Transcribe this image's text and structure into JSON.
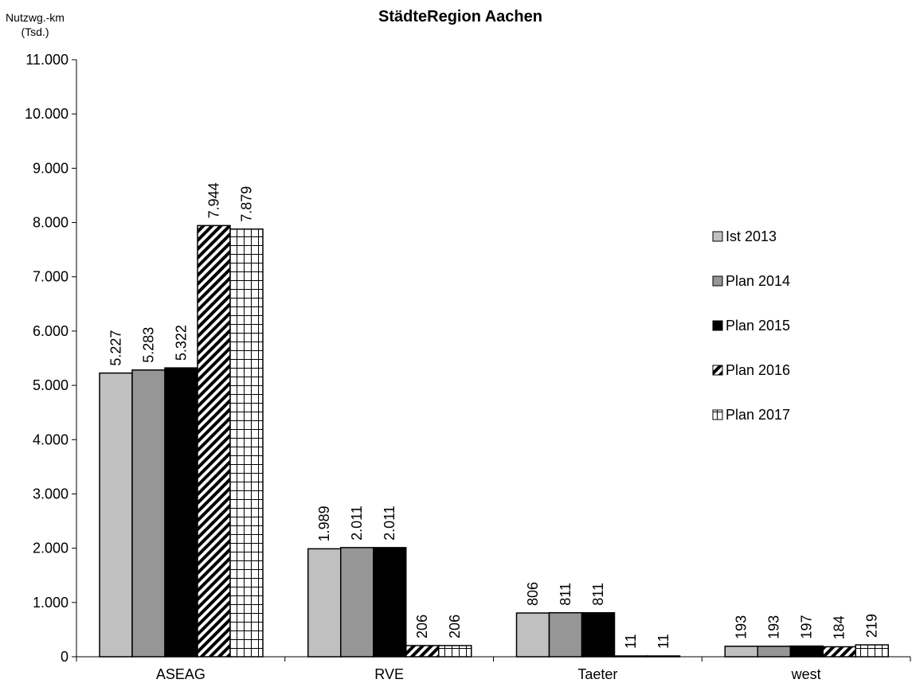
{
  "chart_data": {
    "type": "bar",
    "title": "StädteRegion Aachen",
    "ylabel_line1": "Nutzwg.-km",
    "ylabel_line2": "(Tsd.)",
    "categories": [
      "ASEAG",
      "RVE",
      "Taeter",
      "west"
    ],
    "ylim": [
      0,
      11000
    ],
    "ytick_step": 1000,
    "ytick_labels": [
      "0",
      "1.000",
      "2.000",
      "3.000",
      "4.000",
      "5.000",
      "6.000",
      "7.000",
      "8.000",
      "9.000",
      "10.000",
      "11.000"
    ],
    "grid": false,
    "legend_position": "right",
    "series": [
      {
        "name": "Ist 2013",
        "values": [
          5227,
          1989,
          806,
          193
        ],
        "labels": [
          "5.227",
          "1.989",
          "806",
          "193"
        ],
        "fill": "#c0c0c0",
        "pattern": "solid"
      },
      {
        "name": "Plan 2014",
        "values": [
          5283,
          2011,
          811,
          193
        ],
        "labels": [
          "5.283",
          "2.011",
          "811",
          "193"
        ],
        "fill": "#969696",
        "pattern": "solid"
      },
      {
        "name": "Plan 2015",
        "values": [
          5322,
          2011,
          811,
          197
        ],
        "labels": [
          "5.322",
          "2.011",
          "811",
          "197"
        ],
        "fill": "#000000",
        "pattern": "solid"
      },
      {
        "name": "Plan 2016",
        "values": [
          7944,
          206,
          11,
          184
        ],
        "labels": [
          "7.944",
          "206",
          "11",
          "184"
        ],
        "fill": "#ffffff",
        "pattern": "diagonal"
      },
      {
        "name": "Plan 2017",
        "values": [
          7879,
          206,
          11,
          219
        ],
        "labels": [
          "7.879",
          "206",
          "11",
          "219"
        ],
        "fill": "#ffffff",
        "pattern": "grid"
      }
    ]
  }
}
